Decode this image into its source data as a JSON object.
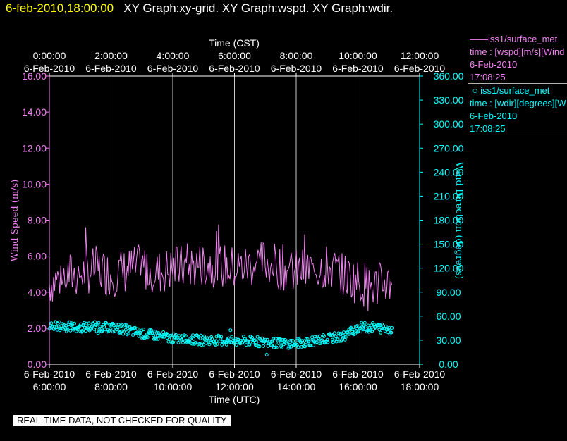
{
  "header": {
    "timestamp": "6-feb-2010,18:00:00",
    "title": "XY Graph:xy-grid.  XY Graph:wspd.  XY Graph:wdir."
  },
  "chart_data": {
    "type": "line",
    "title": "",
    "x_bottom": {
      "label": "Time (UTC)",
      "date": "6-Feb-2010",
      "tick_times": [
        "6:00:00",
        "8:00:00",
        "10:00:00",
        "12:00:00",
        "14:00:00",
        "16:00:00",
        "18:00:00"
      ],
      "range": [
        "6:00:00",
        "18:00:00"
      ]
    },
    "x_top": {
      "label": "Time (CST)",
      "date": "6-Feb-2010",
      "tick_times": [
        "0:00:00",
        "2:00:00",
        "4:00:00",
        "6:00:00",
        "8:00:00",
        "10:00:00",
        "12:00:00"
      ],
      "range": [
        "0:00:00",
        "12:00:00"
      ]
    },
    "y_left": {
      "label": "Wind Speed (m/s)",
      "ylim": [
        0,
        16
      ],
      "ticks": [
        "0.00",
        "2.00",
        "4.00",
        "6.00",
        "8.00",
        "10.00",
        "12.00",
        "14.00",
        "16.00"
      ]
    },
    "y_right": {
      "label": "Wind Direction (degrees)",
      "ylim": [
        0,
        360
      ],
      "ticks": [
        "0.00",
        "30.00",
        "60.00",
        "90.00",
        "120.00",
        "150.00",
        "180.00",
        "210.00",
        "240.00",
        "270.00",
        "300.00",
        "330.00",
        "360.00"
      ]
    },
    "grid": "vertical lines at each 2-hour tick",
    "series": [
      {
        "name": "iss1/surface_met",
        "kind": "line",
        "axis": "left",
        "color": "#ee82ee",
        "x_utc_hours": [
          6.0,
          6.5,
          7.0,
          7.5,
          8.0,
          8.5,
          9.0,
          9.5,
          10.0,
          10.5,
          11.0,
          11.5,
          12.0,
          12.5,
          13.0,
          13.5,
          14.0,
          14.5,
          15.0,
          15.5,
          16.0,
          16.5,
          17.0
        ],
        "values": [
          4.5,
          4.9,
          5.0,
          5.3,
          5.0,
          5.2,
          5.4,
          5.1,
          5.3,
          5.4,
          5.6,
          5.5,
          5.3,
          5.5,
          5.7,
          5.4,
          5.1,
          5.3,
          5.4,
          5.0,
          4.6,
          4.3,
          4.6
        ]
      },
      {
        "name": "iss1/surface_met",
        "kind": "scatter",
        "axis": "right",
        "color": "#00ffff",
        "x_utc_hours": [
          6.0,
          6.5,
          7.0,
          7.5,
          8.0,
          8.5,
          9.0,
          9.5,
          10.0,
          10.5,
          11.0,
          11.5,
          12.0,
          12.5,
          13.0,
          13.5,
          14.0,
          14.5,
          15.0,
          15.5,
          16.0,
          16.5,
          17.0
        ],
        "values": [
          48,
          47,
          46,
          47,
          46,
          43,
          38,
          36,
          32,
          31,
          30,
          30,
          28,
          29,
          27,
          26,
          26,
          29,
          32,
          34,
          46,
          46,
          44
        ]
      }
    ],
    "legend": [
      {
        "symbol": "——",
        "name": "iss1/surface_met",
        "variable": "time : [wspd][m/s][Wind",
        "date": "6-Feb-2010",
        "time": "17:08:25"
      },
      {
        "symbol": "○",
        "name": "iss1/surface_met",
        "variable": "time : [wdir][degrees][W",
        "date": "6-Feb-2010",
        "time": "17:08:25"
      }
    ],
    "legend_placement": "right"
  },
  "colors": {
    "background": "#000000",
    "speed": "#ee82ee",
    "direction": "#00ffff",
    "timestamp": "#ffff00",
    "grid": "#c8c8c8"
  },
  "disclaimer": "REAL-TIME DATA, NOT CHECKED FOR QUALITY"
}
